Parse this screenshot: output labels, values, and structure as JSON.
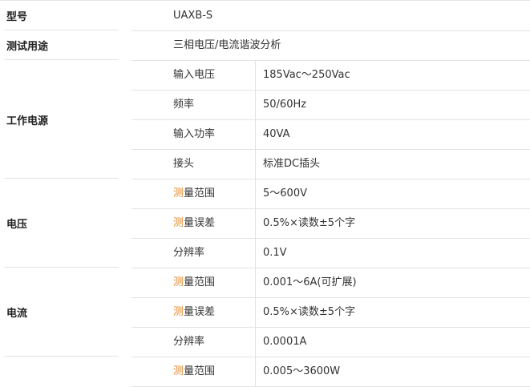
{
  "model": {
    "label": "型号",
    "value": "UAXB-S"
  },
  "usage": {
    "label": "测试用途",
    "value": "三相电压/电流谐波分析"
  },
  "power": {
    "label": "工作电源",
    "rows": [
      {
        "k": "输入电压",
        "v": "185Vac～250Vac"
      },
      {
        "k": "频率",
        "v": "50/60Hz"
      },
      {
        "k": "输入功率",
        "v": "40VA"
      },
      {
        "k": "接头",
        "v": "标准DC插头"
      }
    ]
  },
  "voltage": {
    "label": "电压",
    "rows": [
      {
        "k": "测量范围",
        "v": "5～600V"
      },
      {
        "k": "测量误差",
        "v": "0.5%×读数±5个字"
      },
      {
        "k": "分辨率",
        "v": "0.1V"
      }
    ]
  },
  "current": {
    "label": "电流",
    "rows": [
      {
        "k": "测量范围",
        "v": "0.001～6A(可扩展)"
      },
      {
        "k": "测量误差",
        "v": "0.5%×读数±5个字"
      },
      {
        "k": "分辨率",
        "v": "0.0001A"
      }
    ]
  },
  "power_meas": {
    "rows": [
      {
        "k": "测量范围",
        "v": "0.005～3600W"
      }
    ]
  },
  "colors": {
    "text": "#333333",
    "border": "#e3e3e3",
    "accent": "#e08a2c"
  }
}
